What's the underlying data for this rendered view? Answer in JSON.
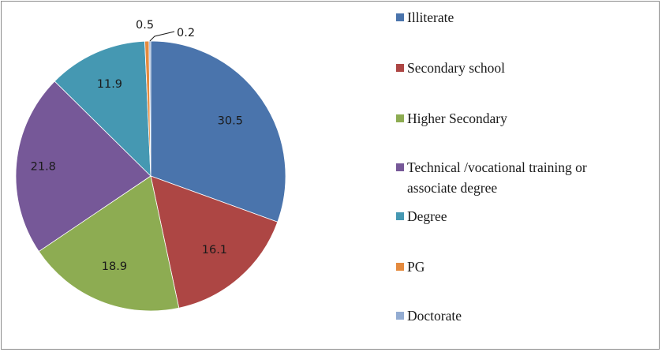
{
  "chart_data": {
    "type": "pie",
    "categories": [
      "Illiterate",
      "Secondary school",
      "Higher Secondary",
      "Technical /vocational training or associate degree",
      "Degree",
      "PG",
      "Doctorate"
    ],
    "legend_lines": [
      [
        "Illiterate"
      ],
      [
        "Secondary school"
      ],
      [
        "Higher Secondary"
      ],
      [
        "Technical /vocational training or",
        "associate degree"
      ],
      [
        "Degree"
      ],
      [
        "PG"
      ],
      [
        "Doctorate"
      ]
    ],
    "values": [
      30.5,
      16.1,
      18.9,
      21.8,
      11.9,
      0.5,
      0.2
    ],
    "data_labels": [
      "30.5",
      "16.1",
      "18.9",
      "21.8",
      "11.9",
      "0.5",
      "0.2"
    ],
    "colors": [
      "#4a74ac",
      "#ad4644",
      "#8dac52",
      "#765898",
      "#4598b2",
      "#e48a3e",
      "#93acd2"
    ],
    "legend_position": "right",
    "start_angle": "top",
    "direction": "clockwise"
  }
}
